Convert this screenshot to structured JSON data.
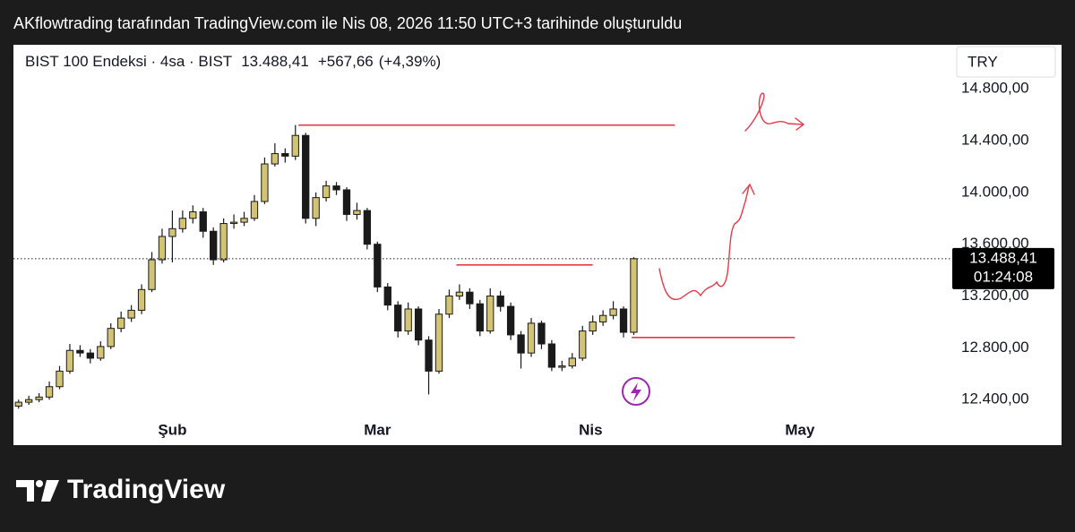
{
  "header": {
    "attribution": "AKflowtrading tarafından TradingView.com ile Nis 08, 2026 11:50 UTC+3 tarihinde oluşturuldu"
  },
  "footer": {
    "brand": "TradingView"
  },
  "chart_data": {
    "type": "candlestick",
    "symbol": "BIST 100 Endeksi · 4sa · BIST",
    "last_price": {
      "value": 13488.41,
      "label": "13.488,41"
    },
    "change": {
      "value": 567.66,
      "label": "+567,66"
    },
    "change_pct": {
      "value": 4.39,
      "label": "(+4,39%)"
    },
    "countdown": "01:24:08",
    "currency": "TRY",
    "up_color": "#d2c474",
    "down_color": "#1a1a1a",
    "wick_color": "#1a1a1a",
    "level_color": "#e5394a",
    "ylim": [
      12270,
      15140
    ],
    "yticks": [
      {
        "value": 12400,
        "label": "12.400,00"
      },
      {
        "value": 12800,
        "label": "12.800,00"
      },
      {
        "value": 13200,
        "label": "13.200,00"
      },
      {
        "value": 13600,
        "label": "13.600,00"
      },
      {
        "value": 14000,
        "label": "14.000,00"
      },
      {
        "value": 14400,
        "label": "14.400,00"
      },
      {
        "value": 14800,
        "label": "14.800,00"
      }
    ],
    "xlim": [
      -0.5,
      90.8
    ],
    "xticks": [
      {
        "value": 15,
        "label": "Şub"
      },
      {
        "value": 35,
        "label": "Mar"
      },
      {
        "value": 55.8,
        "label": "Nis"
      },
      {
        "value": 76.2,
        "label": "May"
      }
    ],
    "levels": [
      {
        "value": 14520,
        "from": 27.3,
        "to": 64
      },
      {
        "value": 13440,
        "from": 42.7,
        "to": 56
      },
      {
        "value": 12880,
        "from": 59.8,
        "to": 75.7
      }
    ],
    "ohlc": [
      [
        12350,
        12400,
        12330,
        12380
      ],
      [
        12380,
        12430,
        12360,
        12400
      ],
      [
        12400,
        12450,
        12380,
        12420
      ],
      [
        12420,
        12540,
        12400,
        12500
      ],
      [
        12500,
        12660,
        12480,
        12620
      ],
      [
        12620,
        12830,
        12600,
        12780
      ],
      [
        12780,
        12820,
        12730,
        12760
      ],
      [
        12760,
        12790,
        12680,
        12720
      ],
      [
        12720,
        12850,
        12700,
        12810
      ],
      [
        12810,
        12990,
        12790,
        12950
      ],
      [
        12950,
        13080,
        12920,
        13030
      ],
      [
        13030,
        13130,
        13000,
        13090
      ],
      [
        13090,
        13290,
        13060,
        13250
      ],
      [
        13250,
        13540,
        13230,
        13480
      ],
      [
        13480,
        13720,
        13450,
        13660
      ],
      [
        13660,
        13860,
        13460,
        13720
      ],
      [
        13720,
        13860,
        13690,
        13800
      ],
      [
        13800,
        13900,
        13760,
        13850
      ],
      [
        13850,
        13880,
        13650,
        13700
      ],
      [
        13700,
        13730,
        13440,
        13480
      ],
      [
        13480,
        13800,
        13460,
        13760
      ],
      [
        13760,
        13830,
        13720,
        13770
      ],
      [
        13770,
        13850,
        13740,
        13800
      ],
      [
        13800,
        13980,
        13780,
        13930
      ],
      [
        13930,
        14270,
        13910,
        14220
      ],
      [
        14220,
        14380,
        14200,
        14300
      ],
      [
        14300,
        14340,
        14230,
        14280
      ],
      [
        14280,
        14520,
        14250,
        14440
      ],
      [
        14440,
        14460,
        13760,
        13800
      ],
      [
        13800,
        14000,
        13740,
        13960
      ],
      [
        13960,
        14090,
        13930,
        14050
      ],
      [
        14050,
        14080,
        13980,
        14020
      ],
      [
        14020,
        14040,
        13780,
        13830
      ],
      [
        13830,
        13920,
        13790,
        13860
      ],
      [
        13860,
        13880,
        13560,
        13600
      ],
      [
        13600,
        13620,
        13230,
        13270
      ],
      [
        13270,
        13300,
        13090,
        13130
      ],
      [
        13130,
        13160,
        12880,
        12930
      ],
      [
        12930,
        13150,
        12900,
        13100
      ],
      [
        13100,
        13120,
        12820,
        12860
      ],
      [
        12860,
        12890,
        12440,
        12620
      ],
      [
        12620,
        13100,
        12600,
        13060
      ],
      [
        13060,
        13250,
        13030,
        13200
      ],
      [
        13200,
        13290,
        13170,
        13230
      ],
      [
        13230,
        13260,
        13100,
        13140
      ],
      [
        13140,
        13170,
        12890,
        12930
      ],
      [
        12930,
        13260,
        12910,
        13200
      ],
      [
        13200,
        13240,
        13080,
        13120
      ],
      [
        13120,
        13150,
        12860,
        12900
      ],
      [
        12900,
        12930,
        12640,
        12760
      ],
      [
        12760,
        13030,
        12730,
        12990
      ],
      [
        12990,
        13010,
        12790,
        12830
      ],
      [
        12830,
        12860,
        12620,
        12650
      ],
      [
        12650,
        12700,
        12620,
        12660
      ],
      [
        12660,
        12760,
        12640,
        12720
      ],
      [
        12720,
        12970,
        12700,
        12930
      ],
      [
        12930,
        13050,
        12900,
        13000
      ],
      [
        13000,
        13090,
        12970,
        13050
      ],
      [
        13050,
        13160,
        13020,
        13100
      ],
      [
        13100,
        13120,
        12880,
        12920
      ],
      [
        12920,
        13500,
        12900,
        13488.41
      ]
    ]
  }
}
